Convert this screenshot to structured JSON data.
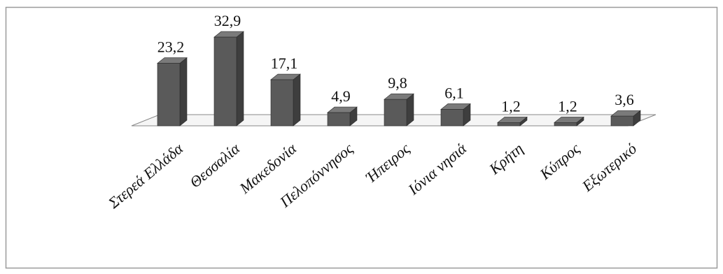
{
  "chart_data": {
    "type": "bar",
    "categories": [
      "Στερεά Ελλάδα",
      "Θεσσαλία",
      "Μακεδονία",
      "Πελοπόννησος",
      "Ήπειρος",
      "Ιόνια νησιά",
      "Κρήτη",
      "Κύπρος",
      "Εξωτερικό"
    ],
    "values": [
      23.2,
      32.9,
      17.1,
      4.9,
      9.8,
      6.1,
      1.2,
      1.2,
      3.6
    ],
    "value_labels": [
      "23,2",
      "32,9",
      "17,1",
      "4,9",
      "9,8",
      "6,1",
      "1,2",
      "1,2",
      "3,6"
    ],
    "title": "",
    "xlabel": "",
    "ylabel": "",
    "ylim": [
      0,
      35
    ],
    "grid": false,
    "legend": "none",
    "style": "3d-column",
    "colors": {
      "bar_front": "#5a5a5a",
      "bar_side": "#3e3e3e",
      "bar_top": "#7a7a7a",
      "floor": "#f5f5f5",
      "floor_stroke": "#888888",
      "frame": "#9a9a9a"
    }
  }
}
